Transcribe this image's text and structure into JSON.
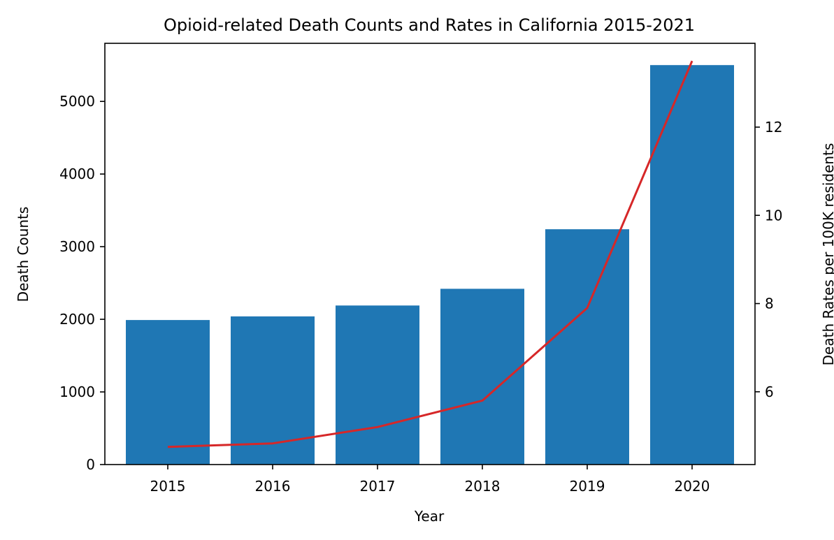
{
  "chart_data": {
    "type": "bar+line",
    "title": "Opioid-related Death Counts and Rates in California 2015-2021",
    "xlabel": "Year",
    "ylabel_left": "Death Counts",
    "ylabel_right": "Death Rates per 100K residents",
    "categories": [
      "2015",
      "2016",
      "2017",
      "2018",
      "2019",
      "2020"
    ],
    "series": [
      {
        "type": "bar",
        "axis": "left",
        "values": [
          1990,
          2040,
          2190,
          2420,
          3240,
          5500
        ],
        "color": "#1f77b4"
      },
      {
        "type": "line",
        "axis": "right",
        "values": [
          4.75,
          4.83,
          5.2,
          5.8,
          7.9,
          13.5
        ],
        "color": "#d62728"
      }
    ],
    "ylim_left": [
      0,
      5800
    ],
    "yticks_left": [
      0,
      1000,
      2000,
      3000,
      4000,
      5000
    ],
    "ylim_right": [
      4.35,
      13.9
    ],
    "yticks_right": [
      6,
      8,
      10,
      12
    ],
    "grid": false,
    "legend": "none"
  }
}
